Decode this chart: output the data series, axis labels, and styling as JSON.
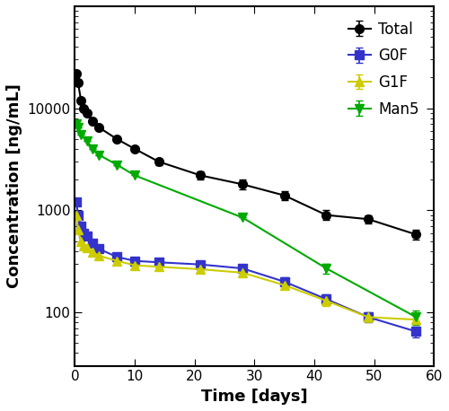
{
  "title": "",
  "xlabel": "Time [days]",
  "ylabel": "Concentration [ng/mL]",
  "series": {
    "Total": {
      "color": "black",
      "marker": "o",
      "markersize": 7,
      "x": [
        0.25,
        0.5,
        1,
        1.5,
        2,
        3,
        4,
        7,
        10,
        14,
        21,
        28,
        35,
        42,
        49,
        57
      ],
      "y": [
        22000,
        18000,
        12000,
        10000,
        9000,
        7500,
        6500,
        5000,
        4000,
        3000,
        2200,
        1800,
        1400,
        900,
        820,
        580
      ],
      "yerr": [
        0,
        0,
        0,
        0,
        0,
        0,
        0,
        0,
        0,
        200,
        200,
        200,
        150,
        100,
        80,
        60
      ]
    },
    "G0F": {
      "color": "#3333cc",
      "marker": "s",
      "markersize": 7,
      "x": [
        0.25,
        0.5,
        1,
        1.5,
        2,
        3,
        4,
        7,
        10,
        14,
        21,
        28,
        35,
        42,
        49,
        57
      ],
      "y": [
        1200,
        900,
        700,
        600,
        560,
        480,
        420,
        350,
        320,
        310,
        295,
        270,
        200,
        135,
        90,
        65
      ],
      "yerr": [
        0,
        0,
        0,
        0,
        0,
        0,
        0,
        0,
        0,
        20,
        20,
        20,
        20,
        15,
        10,
        8
      ]
    },
    "G1F": {
      "color": "#cccc00",
      "marker": "^",
      "markersize": 7,
      "x": [
        0.25,
        0.5,
        1,
        1.5,
        2,
        3,
        4,
        7,
        10,
        14,
        21,
        28,
        35,
        42,
        49,
        57
      ],
      "y": [
        900,
        650,
        500,
        450,
        430,
        390,
        360,
        320,
        290,
        280,
        265,
        245,
        185,
        130,
        90,
        85
      ],
      "yerr": [
        0,
        0,
        0,
        0,
        0,
        0,
        0,
        0,
        0,
        15,
        15,
        15,
        15,
        15,
        10,
        8
      ]
    },
    "Man5": {
      "color": "#00aa00",
      "marker": "v",
      "markersize": 7,
      "x": [
        0.25,
        0.5,
        1,
        2,
        3,
        4,
        7,
        10,
        28,
        42,
        57
      ],
      "y": [
        7000,
        6500,
        5500,
        4800,
        4000,
        3500,
        2800,
        2200,
        850,
        270,
        90
      ],
      "yerr": [
        0,
        0,
        0,
        0,
        0,
        0,
        0,
        0,
        0,
        30,
        15
      ]
    }
  },
  "xlim": [
    0,
    60
  ],
  "ylim_log": [
    30,
    100000
  ],
  "yticks": [
    100,
    1000,
    10000
  ],
  "xticks": [
    0,
    10,
    20,
    30,
    40,
    50,
    60
  ],
  "legend_order": [
    "Total",
    "G0F",
    "G1F",
    "Man5"
  ],
  "figsize": [
    5.0,
    4.58
  ],
  "dpi": 100
}
